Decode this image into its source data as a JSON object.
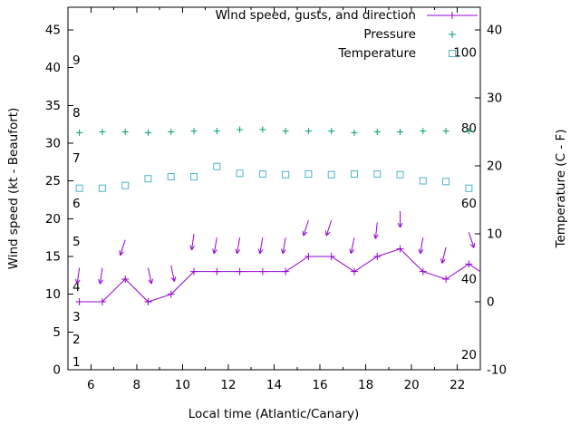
{
  "axes": {
    "x_label": "Local time (Atlantic/Canary)",
    "y_left_label": "Wind speed (kt - Beaufort)",
    "y_right_label": "Temperature (C - F)"
  },
  "legend": {
    "items": [
      {
        "label": "Wind speed, gusts, and direction",
        "sample": "line-plus",
        "color": "#9400d3"
      },
      {
        "label": "Pressure",
        "sample": "plus",
        "color": "#00a060"
      },
      {
        "label": "Temperature",
        "sample": "square",
        "color": "#4db4c8"
      }
    ]
  },
  "chart_data": {
    "type": "line",
    "title": "",
    "xlabel": "Local time (Atlantic/Canary)",
    "ylabel_left": "Wind speed (kt - Beaufort)",
    "ylabel_right": "Temperature (C - F)",
    "x_range": [
      5,
      23
    ],
    "y_left_range": [
      0,
      48
    ],
    "y_right_range": [
      -10,
      40
    ],
    "y_right_maps_to_left": [
      0,
      45
    ],
    "x_ticks": [
      6,
      8,
      10,
      12,
      14,
      16,
      18,
      20,
      22
    ],
    "x_minor_ticks": [
      7,
      9,
      11,
      13,
      15,
      17,
      19,
      21
    ],
    "y_left_ticks": [
      0,
      5,
      10,
      15,
      20,
      25,
      30,
      35,
      40,
      45
    ],
    "y_right_ticks": [
      -10,
      0,
      10,
      20,
      30,
      40
    ],
    "grid": false,
    "legend_position": "top-right-inside",
    "beaufort_scale_labels": [
      {
        "beaufort": "1",
        "kt": 1
      },
      {
        "beaufort": "2",
        "kt": 4
      },
      {
        "beaufort": "3",
        "kt": 7
      },
      {
        "beaufort": "4",
        "kt": 11
      },
      {
        "beaufort": "5",
        "kt": 17
      },
      {
        "beaufort": "6",
        "kt": 22
      },
      {
        "beaufort": "7",
        "kt": 28
      },
      {
        "beaufort": "8",
        "kt": 34
      },
      {
        "beaufort": "9",
        "kt": 41
      }
    ],
    "inner_right_scale_labels": [
      {
        "label": "20",
        "kt": 2
      },
      {
        "label": "40",
        "kt": 12
      },
      {
        "label": "60",
        "kt": 22
      },
      {
        "label": "80",
        "kt": 32
      },
      {
        "label": "100",
        "kt": 42
      }
    ],
    "times": [
      5.5,
      6.5,
      7.5,
      8.5,
      9.5,
      10.5,
      11.5,
      12.5,
      13.5,
      14.5,
      15.5,
      16.5,
      17.5,
      18.5,
      19.5,
      20.5,
      21.5,
      22.5
    ],
    "series": [
      {
        "name": "Wind speed, gusts, and direction",
        "color": "#9400d3",
        "style": "line-plus",
        "axis": "left (kt)",
        "values": [
          9,
          9,
          12,
          9,
          10,
          13,
          13,
          13,
          13,
          13,
          15,
          15,
          13,
          15,
          16,
          13,
          12,
          14
        ],
        "line_end": {
          "x": 23,
          "y": 13
        }
      },
      {
        "name": "Wind gusts / direction arrows",
        "color": "#9400d3",
        "style": "arrow-down",
        "axis": "left (kt)",
        "gust_tops": [
          13.5,
          13.5,
          17.2,
          13.5,
          13.8,
          18,
          17.5,
          17.5,
          17.5,
          17.5,
          19.8,
          19.8,
          17.5,
          19.5,
          21,
          17.5,
          16.2,
          18.2
        ],
        "angles_deg": [
          -8,
          -8,
          -18,
          12,
          12,
          -8,
          -10,
          -10,
          -10,
          -10,
          -18,
          -18,
          -12,
          -6,
          0,
          -10,
          -14,
          18
        ]
      },
      {
        "name": "Pressure",
        "color": "#00a060",
        "style": "plus",
        "axis": "inner scale 20-100",
        "values_plot_left_axis": [
          31.4,
          31.5,
          31.5,
          31.4,
          31.5,
          31.6,
          31.6,
          31.8,
          31.8,
          31.6,
          31.6,
          31.6,
          31.4,
          31.5,
          31.5,
          31.6,
          31.6,
          31.6
        ]
      },
      {
        "name": "Temperature",
        "color": "#4db4c8",
        "style": "square",
        "axis": "right (C)",
        "values_c": [
          16.7,
          16.7,
          17.1,
          18.1,
          18.4,
          18.4,
          19.9,
          18.9,
          18.8,
          18.7,
          18.8,
          18.7,
          18.8,
          18.8,
          18.7,
          17.8,
          17.7,
          16.7
        ]
      }
    ]
  }
}
